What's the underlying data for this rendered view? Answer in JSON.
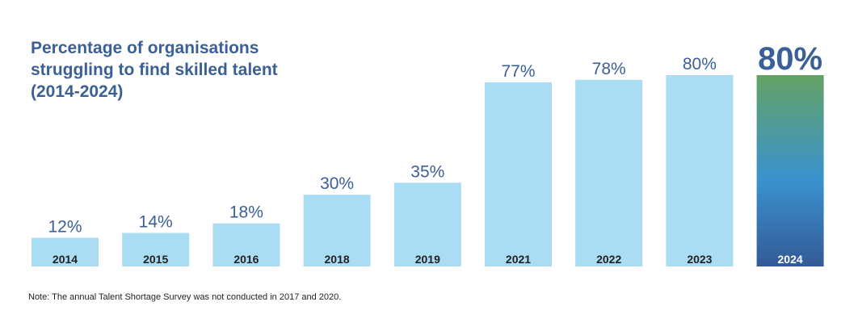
{
  "title": "Percentage of organisations struggling to find skilled talent (2014-2024)",
  "note": "Note: The annual Talent Shortage Survey was not conducted in 2017 and 2020.",
  "colors": {
    "bar": "#aadcf4",
    "value_text": "#3a6096",
    "category_text": "#222222",
    "highlight_category_text": "#ffffff",
    "highlight_gradient_top": "#63a264",
    "highlight_gradient_mid": "#3a92cf",
    "highlight_gradient_bottom": "#335a96"
  },
  "chart_data": {
    "type": "bar",
    "title": "Percentage of organisations struggling to find skilled talent (2014-2024)",
    "xlabel": "",
    "ylabel": "",
    "categories": [
      "2014",
      "2015",
      "2016",
      "2018",
      "2019",
      "2021",
      "2022",
      "2023",
      "2024"
    ],
    "values": [
      12,
      14,
      18,
      30,
      35,
      77,
      78,
      80,
      80
    ],
    "value_labels": [
      "12%",
      "14%",
      "18%",
      "30%",
      "35%",
      "77%",
      "78%",
      "80%",
      "80%"
    ],
    "highlight_category": "2024",
    "ylim": [
      0,
      80
    ],
    "grid": false,
    "legend": "none"
  }
}
